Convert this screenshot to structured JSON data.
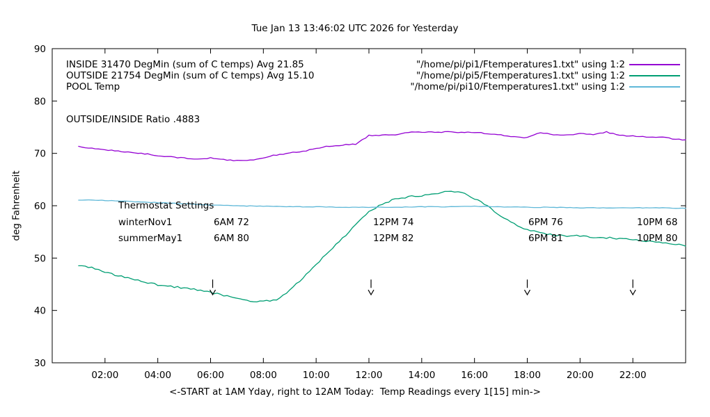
{
  "title": "Tue Jan 13 13:46:02 UTC 2026 for Yesterday",
  "ylabel": "deg Fahrenheit",
  "xlabel": "<-START at 1AM Yday, right to 12AM Today:  Temp Readings every 1[15] min->",
  "ratio_text": "OUTSIDE/INSIDE Ratio .4883",
  "legend": {
    "entries": [
      {
        "label": "INSIDE 31470 DegMin (sum of C temps) Avg 21.85",
        "file": "\"/home/pi/pi1/Ftemperatures1.txt\" using 1:2",
        "color": "#9400d3"
      },
      {
        "label": "OUTSIDE 21754 DegMin (sum of C temps) Avg 15.10",
        "file": "\"/home/pi/pi5/Ftemperatures1.txt\" using 1:2",
        "color": "#009e73"
      },
      {
        "label": "POOL Temp",
        "file": "\"/home/pi/pi10/Ftemperatures1.txt\" using 1:2",
        "color": "#5fb8d8"
      }
    ]
  },
  "thermostat": {
    "heading": "Thermostat Settings",
    "rows": [
      {
        "label": "winterNov1",
        "cells": [
          "6AM 72",
          "12PM 74",
          "6PM 76",
          "10PM 68"
        ]
      },
      {
        "label": "summerMay1",
        "cells": [
          "6AM 80",
          "12PM 82",
          "6PM 81",
          "10PM 80"
        ]
      }
    ]
  },
  "chart_data": {
    "type": "line",
    "title": "Tue Jan 13 13:46:02 UTC 2026 for Yesterday",
    "xlabel": "<-START at 1AM Yday, right to 12AM Today:  Temp Readings every 1[15] min->",
    "ylabel": "deg Fahrenheit",
    "xlim": [
      0,
      24
    ],
    "ylim": [
      30,
      90
    ],
    "grid": false,
    "legend_position": "top-left-inside",
    "x_ticks": [
      {
        "value": 2,
        "label": "02:00"
      },
      {
        "value": 4,
        "label": "04:00"
      },
      {
        "value": 6,
        "label": "06:00"
      },
      {
        "value": 8,
        "label": "08:00"
      },
      {
        "value": 10,
        "label": "10:00"
      },
      {
        "value": 12,
        "label": "12:00"
      },
      {
        "value": 14,
        "label": "14:00"
      },
      {
        "value": 16,
        "label": "16:00"
      },
      {
        "value": 18,
        "label": "18:00"
      },
      {
        "value": 20,
        "label": "20:00"
      },
      {
        "value": 22,
        "label": "22:00"
      }
    ],
    "y_ticks": [
      {
        "value": 30,
        "label": "30"
      },
      {
        "value": 40,
        "label": "40"
      },
      {
        "value": 50,
        "label": "50"
      },
      {
        "value": 60,
        "label": "60"
      },
      {
        "value": 70,
        "label": "70"
      },
      {
        "value": 80,
        "label": "80"
      },
      {
        "value": 90,
        "label": "90"
      }
    ],
    "series": [
      {
        "name": "INSIDE",
        "color": "#9400d3",
        "noise": 0.1,
        "x_start": 1,
        "x_step": 0.5,
        "y": [
          71.3,
          71.0,
          70.7,
          70.4,
          70.2,
          69.9,
          69.6,
          69.3,
          69.1,
          68.9,
          69.1,
          68.8,
          68.6,
          68.7,
          69.2,
          69.7,
          70.1,
          70.4,
          70.9,
          71.4,
          71.6,
          71.8,
          73.4,
          73.5,
          73.6,
          74.0,
          74.1,
          74.0,
          74.1,
          74.0,
          74.0,
          73.8,
          73.5,
          73.2,
          73.0,
          74.0,
          73.6,
          73.5,
          73.8,
          73.5,
          74.1,
          73.4,
          73.3,
          73.2,
          73.1,
          72.8,
          72.5
        ]
      },
      {
        "name": "OUTSIDE",
        "color": "#009e73",
        "noise": 0.16,
        "x_start": 1,
        "x_step": 0.5,
        "y": [
          48.6,
          48.2,
          47.3,
          46.6,
          46.1,
          45.4,
          44.9,
          44.6,
          44.3,
          43.9,
          43.4,
          42.9,
          42.3,
          41.8,
          41.7,
          42.1,
          43.8,
          46.2,
          48.8,
          51.3,
          53.8,
          56.3,
          58.8,
          60.3,
          61.3,
          61.7,
          61.9,
          62.2,
          62.7,
          62.6,
          61.4,
          59.9,
          58.1,
          56.6,
          55.4,
          54.8,
          54.4,
          54.2,
          54.3,
          54.0,
          53.9,
          53.7,
          53.5,
          53.3,
          53.1,
          52.8,
          52.4
        ]
      },
      {
        "name": "POOL",
        "color": "#5fb8d8",
        "noise": 0.05,
        "x_start": 1,
        "x_step": 1,
        "y": [
          61.1,
          61.0,
          60.8,
          60.6,
          60.4,
          60.1,
          60.0,
          59.9,
          59.8,
          59.8,
          59.7,
          59.7,
          59.7,
          59.8,
          59.8,
          59.9,
          59.8,
          59.7,
          59.7,
          59.6,
          59.6,
          59.6,
          59.6,
          59.5
        ]
      }
    ],
    "arrows": {
      "x_positions": [
        6.08,
        12.08,
        18.0,
        22.0
      ],
      "y_top": 45.9,
      "y_head": 43.0
    }
  }
}
